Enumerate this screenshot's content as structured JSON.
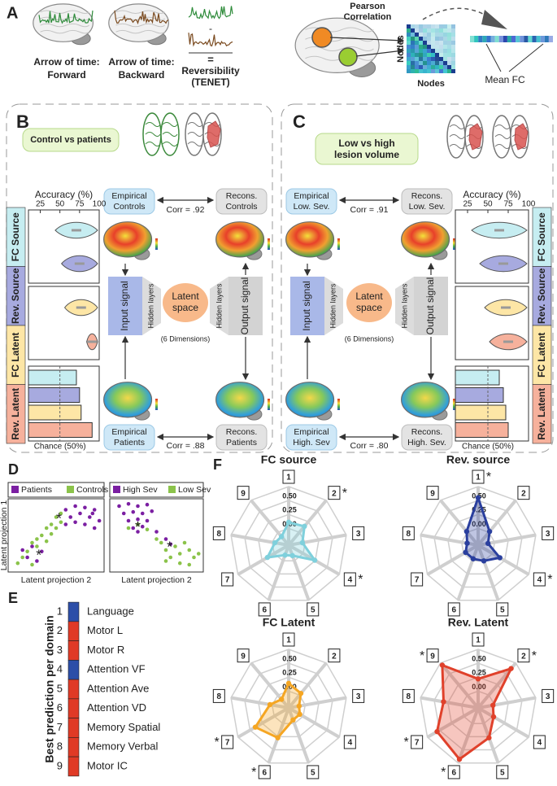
{
  "panel_a": {
    "letter": "A",
    "forward_caption": "Arrow of time:",
    "forward": "Forward",
    "backward_caption": "Arrow of time:",
    "backward": "Backward",
    "minus": "-",
    "equals": "=",
    "reversibility": "Reversibility",
    "tenet": "(TENET)",
    "pearson": "Pearson",
    "correlation": "Correlation",
    "nodes_y": "Nodes",
    "nodes_x": "Nodes",
    "mean_fc": "Mean FC"
  },
  "panel_b": {
    "letter": "B",
    "title": "Control vs patients",
    "empirical_top": [
      "Empirical",
      "Controls"
    ],
    "corr_top": "Corr = .92",
    "recons_top": [
      "Recons.",
      "Controls"
    ],
    "empirical_bottom": [
      "Empirical",
      "Patients"
    ],
    "corr_bottom": "Corr = .88",
    "recons_bottom": [
      "Recons.",
      "Patients"
    ]
  },
  "panel_c": {
    "letter": "C",
    "title": [
      "Low vs high",
      "lesion volume"
    ],
    "empirical_top": [
      "Empirical",
      "Low. Sev."
    ],
    "corr_top": "Corr = .91",
    "recons_top": [
      "Recons.",
      "Low. Sev."
    ],
    "empirical_bottom": [
      "Empirical",
      "High. Sev"
    ],
    "corr_bottom": "Corr = .80",
    "recons_bottom": [
      "Recons.",
      "High. Sev."
    ]
  },
  "autoencoder": {
    "input": "Input signal",
    "hidden": "Hidden layers",
    "latent": [
      "Latent",
      "space"
    ],
    "dims": "(6 Dimensions)",
    "output": "Output signal"
  },
  "panel_d": {
    "letter": "D"
  },
  "panel_e": {
    "letter": "E",
    "y_label": "Best prediction per domain",
    "rows": [
      {
        "number": "1",
        "domain": "Language",
        "color": "#2c4ea8"
      },
      {
        "number": "2",
        "domain": "Motor L",
        "color": "#e03a26"
      },
      {
        "number": "3",
        "domain": "Motor R",
        "color": "#e03a26"
      },
      {
        "number": "4",
        "domain": "Attention VF",
        "color": "#2c4ea8"
      },
      {
        "number": "5",
        "domain": "Attention Ave",
        "color": "#e03a26"
      },
      {
        "number": "6",
        "domain": "Attention VD",
        "color": "#e03a26"
      },
      {
        "number": "7",
        "domain": "Memory Spatial",
        "color": "#e03a26"
      },
      {
        "number": "8",
        "domain": "Memory Verbal",
        "color": "#e03a26"
      },
      {
        "number": "9",
        "domain": "Motor IC",
        "color": "#e03a26"
      }
    ]
  },
  "panel_f": {
    "letter": "F"
  },
  "chart_data": [
    {
      "type": "bar",
      "orientation": "horizontal",
      "x_label": "Accuracy (%)",
      "categories": [
        "FC Source",
        "Rev. Source",
        "FC Latent",
        "Rev. Latent"
      ],
      "values": [
        71,
        75,
        77,
        91
      ],
      "colors": [
        "#c6edf1",
        "#a7aadf",
        "#fde6a6",
        "#f6b19c"
      ],
      "xlim": [
        10,
        100
      ],
      "xticks": [
        25,
        50,
        75,
        100
      ],
      "reference": 50,
      "reference_label": "Chance (50%)"
    },
    {
      "type": "bar",
      "orientation": "horizontal",
      "x_label": "Accuracy (%)",
      "categories": [
        "FC Source",
        "Rev. Source",
        "FC Latent",
        "Rev. Latent"
      ],
      "values": [
        64,
        69,
        72,
        75
      ],
      "colors": [
        "#c6edf1",
        "#a7aadf",
        "#fde6a6",
        "#f6b19c"
      ],
      "xlim": [
        10,
        100
      ],
      "xticks": [
        25,
        50,
        75,
        100
      ],
      "reference": 50,
      "reference_label": "Chance (50%)"
    },
    {
      "type": "scatter",
      "y_label": "Latent projection 1",
      "x_label": "Latent projection 2",
      "xlim": [
        0,
        10
      ],
      "ylim": [
        0,
        10
      ],
      "centroid_label": "*",
      "series": [
        {
          "name": "Patients",
          "color": "#7b1fa2",
          "x": [
            6,
            7,
            8,
            9,
            7.5,
            8.5,
            9.5,
            6.5,
            7,
            8,
            9,
            8.8,
            6,
            2,
            3,
            1.5,
            2.5,
            3.5
          ],
          "y": [
            8.5,
            9,
            8.8,
            8.5,
            8,
            7.5,
            7,
            7.5,
            6.8,
            6.5,
            6,
            8,
            6.5,
            2,
            1.5,
            3,
            3.5,
            2.8
          ],
          "centroid_x": 5.3,
          "centroid_y": 7.6
        },
        {
          "name": "Controls",
          "color": "#8bc34a",
          "x": [
            5,
            5.5,
            4.5,
            4,
            5,
            3.5,
            4.5,
            3,
            4,
            2.5,
            3,
            2,
            1.5,
            2.5,
            1,
            5.5
          ],
          "y": [
            7.5,
            8,
            6.5,
            6,
            6,
            5,
            5.2,
            4.5,
            4.2,
            4,
            3.5,
            2.8,
            2,
            1,
            1.2,
            6.8
          ],
          "centroid_x": 3.2,
          "centroid_y": 2.6
        }
      ]
    },
    {
      "type": "scatter",
      "x_label": "Latent projection 2",
      "xlim": [
        0,
        10
      ],
      "ylim": [
        0,
        10
      ],
      "centroid_label": "*",
      "series": [
        {
          "name": "High Sev",
          "color": "#7b1fa2",
          "x": [
            1,
            2,
            3,
            4,
            1.5,
            2.5,
            3.5,
            4.5,
            2,
            3,
            4,
            2.5,
            3.5,
            5,
            6,
            6.5,
            3
          ],
          "y": [
            9,
            9.3,
            9,
            9.2,
            8,
            8.2,
            8,
            8.3,
            7,
            7.2,
            7,
            6,
            6.2,
            5.5,
            4.5,
            3.8,
            5.5
          ],
          "centroid_x": 3,
          "centroid_y": 6.4
        },
        {
          "name": "Low Sev",
          "color": "#8bc34a",
          "x": [
            3,
            2,
            4,
            5,
            5.5,
            6,
            7,
            8,
            7.5,
            8.5,
            9,
            6.5,
            7.5,
            8.5,
            9.5,
            6
          ],
          "y": [
            6.5,
            6,
            5.8,
            4.5,
            4,
            3,
            3.5,
            4,
            2.5,
            3,
            2,
            2,
            1.2,
            1,
            2.5,
            1.5
          ],
          "centroid_x": 6.4,
          "centroid_y": 3.7
        }
      ]
    },
    {
      "type": "radar",
      "title": "FC source",
      "categories": [
        "1",
        "2",
        "3",
        "4",
        "5",
        "6",
        "7",
        "8",
        "9"
      ],
      "values": [
        0.11,
        0.14,
        -0.05,
        0.24,
        -0.1,
        -0.11,
        0.14,
        -0.05,
        -0.1
      ],
      "rlim": [
        -0.3,
        0.75
      ],
      "rticks": [
        {
          "value": 0,
          "label": "0.00"
        },
        0.25,
        {
          "value": 0.5,
          "label": "0.50"
        }
      ],
      "color": "#7fd0dc",
      "marker_color": "#3a4fb0",
      "axis_marks": [
        null,
        "*",
        null,
        "*",
        null,
        null,
        null,
        null,
        null
      ]
    },
    {
      "type": "radar",
      "title": "Rev. source",
      "categories": [
        "1",
        "2",
        "3",
        "4",
        "5",
        "6",
        "7",
        "8",
        "9"
      ],
      "values": [
        0.55,
        0.02,
        -0.12,
        0.15,
        0,
        -0.04,
        -0.04,
        -0.1,
        0.02
      ],
      "rlim": [
        -0.3,
        0.75
      ],
      "rticks": [
        {
          "value": 0,
          "label": "0.00"
        },
        0.25,
        {
          "value": 0.5,
          "label": "0.50"
        }
      ],
      "color": "#2a3f9e",
      "marker_color": "#3a4fb0",
      "axis_marks": [
        "*",
        null,
        null,
        "*",
        null,
        null,
        null,
        null,
        null
      ]
    },
    {
      "type": "radar",
      "title": "FC Latent",
      "categories": [
        "1",
        "2",
        "3",
        "4",
        "5",
        "6",
        "7",
        "8",
        "9"
      ],
      "values": [
        0.14,
        0.04,
        -0.11,
        -0.07,
        -0.07,
        0.27,
        0.39,
        0.04,
        -0.1
      ],
      "rlim": [
        -0.3,
        0.75
      ],
      "rticks": [
        {
          "value": 0,
          "label": "0.00"
        },
        0.25,
        {
          "value": 0.5,
          "label": "0.50"
        }
      ],
      "color": "#f5a623",
      "marker_color": "#f07f2a",
      "axis_marks": [
        null,
        null,
        null,
        null,
        null,
        "*",
        "*",
        null,
        null
      ]
    },
    {
      "type": "radar",
      "title": "Rev. Latent",
      "categories": [
        "1",
        "2",
        "3",
        "4",
        "5",
        "6",
        "7",
        "8",
        "9"
      ],
      "values": [
        0.22,
        0.62,
        -0.03,
        0.02,
        0.27,
        0.68,
        0.55,
        0.33,
        0.7
      ],
      "rlim": [
        -0.3,
        0.75
      ],
      "rticks": [
        {
          "value": 0,
          "label": "0.00"
        },
        0.25,
        {
          "value": 0.5,
          "label": "0.50"
        }
      ],
      "color": "#e0412b",
      "marker_color": "#e0412b",
      "axis_marks": [
        null,
        "*",
        null,
        null,
        null,
        "*",
        "*",
        null,
        "*"
      ]
    }
  ]
}
